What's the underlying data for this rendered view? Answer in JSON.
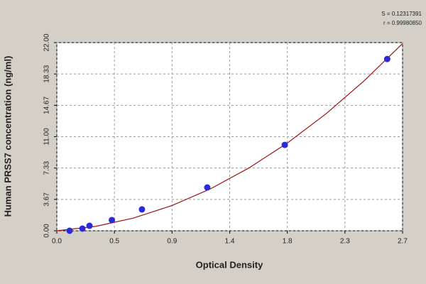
{
  "chart_data": {
    "type": "scatter",
    "x_label": "Optical Density",
    "y_label": "Human PRSS7 concentration (ng/ml)",
    "annotations": [
      "S = 0.12317391",
      "r = 0.99980850"
    ],
    "x": [
      0.1,
      0.2,
      0.255,
      0.43,
      0.665,
      1.175,
      1.78,
      2.58
    ],
    "y": [
      0,
      0.25,
      0.58,
      1.25,
      2.5,
      5.06,
      10.04,
      20.08
    ],
    "color": "#2a2ad6",
    "fit": {
      "color": "#a01010",
      "x": [
        0,
        0.3,
        0.6,
        0.9,
        1.2,
        1.5,
        1.8,
        2.1,
        2.4,
        2.7
      ],
      "y": [
        0,
        0.5,
        1.49,
        2.95,
        4.9,
        7.34,
        10.25,
        13.65,
        17.53,
        21.89
      ]
    },
    "xlim": [
      0,
      2.7
    ],
    "ylim": [
      0,
      22
    ],
    "xticks": [
      {
        "value": 0,
        "label": "0.0"
      },
      {
        "value": 0.45,
        "label": "0.5"
      },
      {
        "value": 0.9,
        "label": "0.9"
      },
      {
        "value": 1.35,
        "label": "1.4"
      },
      {
        "value": 1.8,
        "label": "1.8"
      },
      {
        "value": 2.25,
        "label": "2.3"
      },
      {
        "value": 2.7,
        "label": "2.7"
      }
    ],
    "yticks": [
      {
        "value": 0,
        "label": "0.00"
      },
      {
        "value": 3.667,
        "label": "3.67"
      },
      {
        "value": 7.333,
        "label": "7.33"
      },
      {
        "value": 11,
        "label": "11.00"
      },
      {
        "value": 14.667,
        "label": "14.67"
      },
      {
        "value": 18.333,
        "label": "18.33"
      },
      {
        "value": 22,
        "label": "22.00"
      }
    ],
    "grid": true
  }
}
